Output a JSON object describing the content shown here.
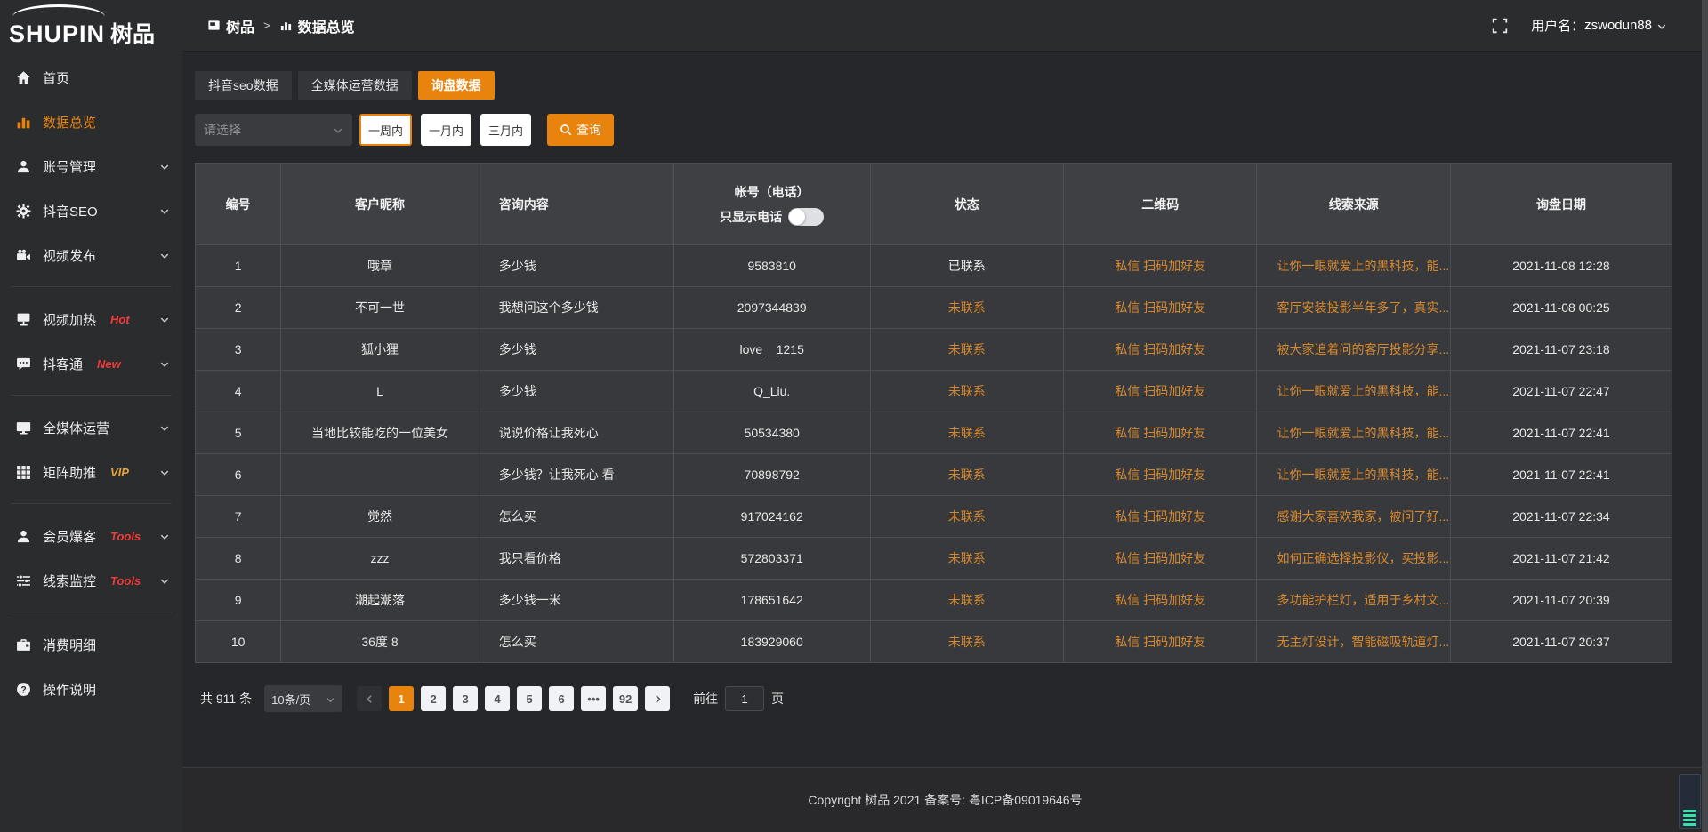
{
  "logo": {
    "text_en": "SHUPIN",
    "text_cn": "树品"
  },
  "header": {
    "breadcrumb": [
      {
        "icon": "app-icon",
        "label": "树品"
      },
      {
        "icon": "chart-icon",
        "label": "数据总览"
      }
    ],
    "separator": ">",
    "fullscreen_icon": "fullscreen-icon",
    "username_label": "用户名：",
    "username": "zswodun88"
  },
  "sidebar": {
    "items": [
      {
        "icon": "home-icon",
        "label": "首页"
      },
      {
        "icon": "bar-chart-icon",
        "label": "数据总览",
        "active": true
      },
      {
        "icon": "user-icon",
        "label": "账号管理",
        "chevron": true
      },
      {
        "icon": "gear-icon",
        "label": "抖音SEO",
        "chevron": true
      },
      {
        "icon": "video-camera-icon",
        "label": "视频发布",
        "chevron": true
      },
      {
        "divider": true
      },
      {
        "icon": "screen-icon",
        "label": "视频加热",
        "badge": "Hot",
        "badge_color": "#f03b3b",
        "chevron": true
      },
      {
        "icon": "chat-icon",
        "label": "抖客通",
        "badge": "New",
        "badge_color": "#f03b3b",
        "chevron": true
      },
      {
        "divider": true
      },
      {
        "icon": "monitor-icon",
        "label": "全媒体运营",
        "chevron": true
      },
      {
        "icon": "grid-icon",
        "label": "矩阵助推",
        "badge": "VIP",
        "badge_color": "#e7a23d",
        "chevron": true
      },
      {
        "divider": true
      },
      {
        "icon": "person-icon",
        "label": "会员爆客",
        "badge": "Tools",
        "badge_color": "#f03b3b",
        "chevron": true
      },
      {
        "icon": "sliders-icon",
        "label": "线索监控",
        "badge": "Tools",
        "badge_color": "#f03b3b",
        "chevron": true
      },
      {
        "divider": true
      },
      {
        "icon": "wallet-icon",
        "label": "消费明细"
      },
      {
        "icon": "question-icon",
        "label": "操作说明"
      }
    ]
  },
  "tabs": [
    {
      "label": "抖音seo数据",
      "active": false
    },
    {
      "label": "全媒体运营数据",
      "active": false
    },
    {
      "label": "询盘数据",
      "active": true
    }
  ],
  "filters": {
    "select_placeholder": "请选择",
    "range_buttons": [
      {
        "label": "一周内",
        "selected": true
      },
      {
        "label": "一月内",
        "selected": false
      },
      {
        "label": "三月内",
        "selected": false
      }
    ],
    "search_icon": "search-icon",
    "search_button": "查询"
  },
  "table": {
    "columns": [
      "编号",
      "客户昵称",
      "咨询内容",
      "帐号（电话）",
      "状态",
      "二维码",
      "线索来源",
      "询盘日期"
    ],
    "phone_toggle_label": "只显示电话",
    "phone_toggle_state": "off",
    "rows": [
      {
        "no": "1",
        "nickname": "哦章",
        "content": "多少钱",
        "account": "9583810",
        "status": "已联系",
        "contacted": true,
        "qr": "私信 扫码加好友",
        "source": "让你一眼就爱上的黑科技，能...",
        "date": "2021-11-08 12:28"
      },
      {
        "no": "2",
        "nickname": "不可一世",
        "content": "我想问这个多少钱",
        "account": "2097344839",
        "status": "未联系",
        "contacted": false,
        "qr": "私信 扫码加好友",
        "source": "客厅安装投影半年多了，真实...",
        "date": "2021-11-08 00:25"
      },
      {
        "no": "3",
        "nickname": "狐小狸",
        "content": "多少钱",
        "account": "love__1215",
        "status": "未联系",
        "contacted": false,
        "qr": "私信 扫码加好友",
        "source": "被大家追着问的客厅投影分享...",
        "date": "2021-11-07 23:18"
      },
      {
        "no": "4",
        "nickname": "L",
        "content": "多少钱",
        "account": "Q_Liu.",
        "status": "未联系",
        "contacted": false,
        "qr": "私信 扫码加好友",
        "source": "让你一眼就爱上的黑科技，能...",
        "date": "2021-11-07 22:47"
      },
      {
        "no": "5",
        "nickname": "当地比较能吃的一位美女",
        "content": "说说价格让我死心",
        "account": "50534380",
        "status": "未联系",
        "contacted": false,
        "qr": "私信 扫码加好友",
        "source": "让你一眼就爱上的黑科技，能...",
        "date": "2021-11-07 22:41"
      },
      {
        "no": "6",
        "nickname": "",
        "content": "多少钱？让我死心 看",
        "account": "70898792",
        "status": "未联系",
        "contacted": false,
        "qr": "私信 扫码加好友",
        "source": "让你一眼就爱上的黑科技，能...",
        "date": "2021-11-07 22:41"
      },
      {
        "no": "7",
        "nickname": "觉然",
        "content": "怎么买",
        "account": "917024162",
        "status": "未联系",
        "contacted": false,
        "qr": "私信 扫码加好友",
        "source": "感谢大家喜欢我家，被问了好...",
        "date": "2021-11-07 22:34"
      },
      {
        "no": "8",
        "nickname": "zzz",
        "content": "我只看价格",
        "account": "572803371",
        "status": "未联系",
        "contacted": false,
        "qr": "私信 扫码加好友",
        "source": "如何正确选择投影仪，买投影...",
        "date": "2021-11-07 21:42"
      },
      {
        "no": "9",
        "nickname": "潮起潮落",
        "content": "多少钱一米",
        "account": "178651642",
        "status": "未联系",
        "contacted": false,
        "qr": "私信 扫码加好友",
        "source": "多功能护栏灯，适用于乡村文...",
        "date": "2021-11-07 20:39"
      },
      {
        "no": "10",
        "nickname": "36度 8",
        "content": "怎么买",
        "account": "183929060",
        "status": "未联系",
        "contacted": false,
        "qr": "私信 扫码加好友",
        "source": "无主灯设计，智能磁吸轨道灯...",
        "date": "2021-11-07 20:37"
      }
    ]
  },
  "pagination": {
    "total_label": "共 911 条",
    "page_size": "10条/页",
    "prev_icon": "chevron-left-icon",
    "next_icon": "chevron-right-icon",
    "pages": [
      "1",
      "2",
      "3",
      "4",
      "5",
      "6",
      "•••",
      "92"
    ],
    "active_page": "1",
    "goto_label": "前往",
    "goto_value": "1",
    "goto_suffix": "页"
  },
  "footer": {
    "copyright": "Copyright 树品 2021 备案号: 粤ICP备09019646号"
  },
  "misc": {
    "corner_widget": "mini-equalizer-widget",
    "corner_widget_bars": 4
  },
  "colors": {
    "accent": "#e8830d",
    "table_link_orange": "#d8892d",
    "badge_red": "#f03b3b",
    "badge_gold": "#e7a23d",
    "sidebar_bg": "#2b2c2e",
    "table_row_bg": "#38393c",
    "table_header_bg": "#3f4044"
  }
}
